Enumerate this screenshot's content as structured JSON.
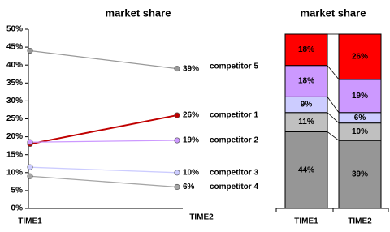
{
  "chart_data": [
    {
      "type": "line",
      "title": "market share",
      "categories": [
        "TIME1",
        "TIME2"
      ],
      "ylim": [
        0,
        50
      ],
      "yticks": [
        {
          "value": 0,
          "label": "0%"
        },
        {
          "value": 5,
          "label": "5%"
        },
        {
          "value": 10,
          "label": "10%"
        },
        {
          "value": 15,
          "label": "15%"
        },
        {
          "value": 20,
          "label": "20%"
        },
        {
          "value": 25,
          "label": "25%"
        },
        {
          "value": 30,
          "label": "30%"
        },
        {
          "value": 35,
          "label": "35%"
        },
        {
          "value": 40,
          "label": "40%"
        },
        {
          "value": 45,
          "label": "45%"
        },
        {
          "value": 50,
          "label": "50%"
        }
      ],
      "series": [
        {
          "name": "competitor 5",
          "color": "#999999",
          "values": [
            44,
            39
          ],
          "value_labels": [
            null,
            "39%"
          ]
        },
        {
          "name": "competitor 1",
          "color": "#c00000",
          "values": [
            18,
            26
          ],
          "value_labels": [
            null,
            "26%"
          ]
        },
        {
          "name": "competitor 2",
          "color": "#cc99ff",
          "values": [
            18.5,
            19
          ],
          "value_labels": [
            null,
            "19%"
          ]
        },
        {
          "name": "competitor 3",
          "color": "#ccccff",
          "values": [
            11.5,
            10
          ],
          "value_labels": [
            null,
            "10%"
          ]
        },
        {
          "name": "competitor 4",
          "color": "#a6a6a6",
          "values": [
            9,
            6
          ],
          "value_labels": [
            null,
            "6%"
          ]
        }
      ]
    },
    {
      "type": "stacked_bar",
      "title": "market share",
      "categories": [
        "TIME1",
        "TIME2"
      ],
      "series": [
        {
          "color": "#969696",
          "values": [
            44,
            39
          ],
          "value_labels": [
            "44%",
            "39%"
          ]
        },
        {
          "color": "#c0c0c0",
          "values": [
            11,
            10
          ],
          "value_labels": [
            "11%",
            "10%"
          ]
        },
        {
          "color": "#ccccff",
          "values": [
            9,
            6
          ],
          "value_labels": [
            "9%",
            "6%"
          ]
        },
        {
          "color": "#cc99ff",
          "values": [
            18,
            19
          ],
          "value_labels": [
            "18%",
            "19%"
          ]
        },
        {
          "color": "#ff0000",
          "values": [
            18,
            26
          ],
          "value_labels": [
            "18%",
            "26%"
          ]
        }
      ]
    }
  ]
}
